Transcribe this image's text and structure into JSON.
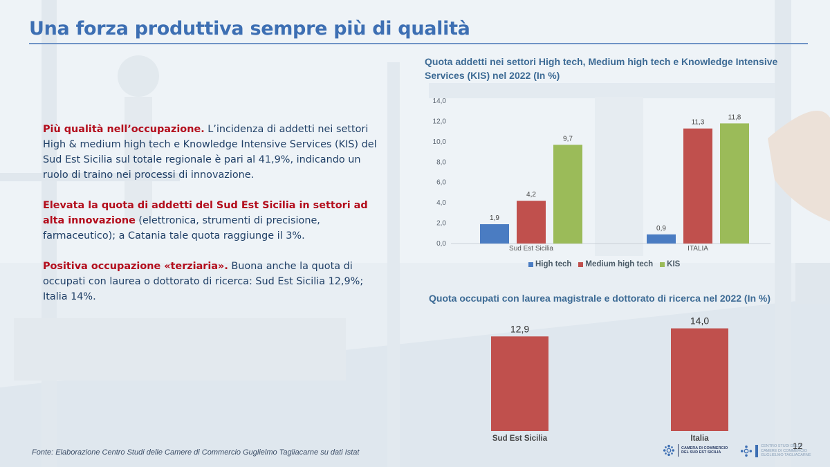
{
  "title": "Una forza produttiva sempre più di qualità",
  "paragraphs": [
    {
      "highlight": "Più qualità nell’occupazione.",
      "text": " L’incidenza di  addetti nei settori High & medium high tech e Knowledge Intensive Services (KIS) del Sud Est Sicilia sul totale regionale è pari al 41,9%, indicando un ruolo di traino nei processi di innovazione."
    },
    {
      "highlight": "Elevata la quota di addetti del Sud Est Sicilia in settori ad alta innovazione",
      "text": " (elettronica, strumenti di precisione, farmaceutico); a Catania tale quota raggiunge il 3%."
    },
    {
      "highlight": "Positiva occupazione «terziaria».",
      "text": " Buona anche la quota di occupati con laurea o dottorato di ricerca: Sud Est Sicilia 12,9%; Italia 14%."
    }
  ],
  "chart_data": [
    {
      "type": "bar",
      "title": "Quota addetti nei settori High tech, Medium high tech e Knowledge Intensive Services (KIS) nel 2022 (In %)",
      "categories": [
        "Sud Est Sicilia",
        "ITALIA"
      ],
      "series": [
        {
          "name": "High tech",
          "values": [
            1.9,
            0.9
          ],
          "labels": [
            "1,9",
            "0,9"
          ],
          "color": "#4a7cc2"
        },
        {
          "name": "Medium high tech",
          "values": [
            4.2,
            11.3
          ],
          "labels": [
            "4,2",
            "11,3"
          ],
          "color": "#c0504d"
        },
        {
          "name": "KIS",
          "values": [
            9.7,
            11.8
          ],
          "labels": [
            "9,7",
            "11,8"
          ],
          "color": "#9bbb59"
        }
      ],
      "yticks": [
        "0,0",
        "2,0",
        "4,0",
        "6,0",
        "8,0",
        "10,0",
        "12,0",
        "14,0"
      ],
      "ylim": [
        0,
        14
      ],
      "legend": "bottom",
      "grid": false
    },
    {
      "type": "bar",
      "title": "Quota occupati con laurea magistrale e dottorato di ricerca nel 2022 (In %)",
      "categories": [
        "Sud Est Sicilia",
        "Italia"
      ],
      "values": [
        12.9,
        14.0
      ],
      "labels": [
        "12,9",
        "14,0"
      ],
      "color": "#c0504d",
      "ylim": [
        0,
        14
      ]
    }
  ],
  "source": "Fonte: Elaborazione Centro Studi delle Camere di Commercio Guglielmo Tagliacarne su dati Istat",
  "logos": [
    {
      "lines": [
        "CAMERA DI COMMERCIO",
        "DEL SUD EST SICILIA"
      ],
      "icon": "chamber-logo-icon"
    },
    {
      "lines": [
        "CENTRO STUDI DELLE",
        "CAMERE DI COMMERCIO",
        "GUGLIELMO TAGLIACARNE"
      ],
      "icon": "tagliacarne-logo-icon"
    }
  ],
  "page_number": "12"
}
